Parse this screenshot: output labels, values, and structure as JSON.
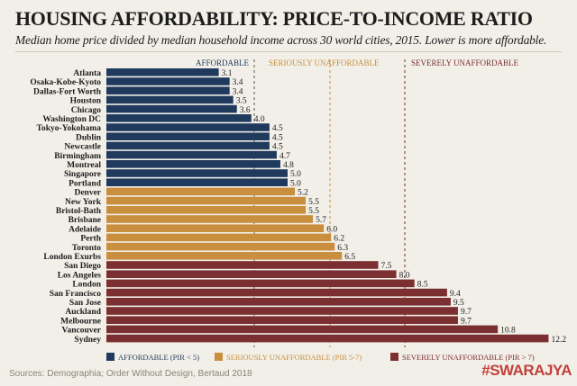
{
  "chart_data": {
    "type": "bar",
    "orientation": "horizontal",
    "title": "HOUSING AFFORDABILITY: PRICE-TO-INCOME RATIO",
    "subtitle": "Median home price divided by median household income across 30 world cities, 2015. Lower is more affordable.",
    "categories": [
      "Atlanta",
      "Osaka-Kobe-Kyoto",
      "Dallas-Fort Worth",
      "Houston",
      "Chicago",
      "Washington DC",
      "Tokyo-Yokohama",
      "Dublin",
      "Newcastle",
      "Birmingham",
      "Montreal",
      "Singapore",
      "Portland",
      "Denver",
      "New York",
      "Bristol-Bath",
      "Brisbane",
      "Adelaide",
      "Perth",
      "Toronto",
      "London Exurbs",
      "San Diego",
      "Los Angeles",
      "London",
      "San Francisco",
      "San Jose",
      "Auckland",
      "Melbourne",
      "Vancouver",
      "Sydney"
    ],
    "values": [
      3.1,
      3.4,
      3.4,
      3.5,
      3.6,
      4.0,
      4.5,
      4.5,
      4.5,
      4.7,
      4.8,
      5.0,
      5.0,
      5.2,
      5.5,
      5.5,
      5.7,
      6.0,
      6.2,
      6.3,
      6.5,
      7.5,
      8.0,
      8.5,
      9.4,
      9.5,
      9.7,
      9.7,
      10.8,
      12.2
    ],
    "groups": [
      "affordable",
      "affordable",
      "affordable",
      "affordable",
      "affordable",
      "affordable",
      "affordable",
      "affordable",
      "affordable",
      "affordable",
      "affordable",
      "affordable",
      "affordable",
      "serious",
      "serious",
      "serious",
      "serious",
      "serious",
      "serious",
      "serious",
      "serious",
      "severe",
      "severe",
      "severe",
      "severe",
      "severe",
      "severe",
      "severe",
      "severe",
      "severe"
    ],
    "zone_labels": [
      "AFFORDABLE",
      "SERIOUSLY UNAFFORDABLE",
      "SEVERELY UNAFFORDABLE"
    ],
    "legend": [
      {
        "key": "affordable",
        "label": "AFFORDABLE (PIR < 5)",
        "color": "#1f3a5c"
      },
      {
        "key": "serious",
        "label": "SERIOUSLY UNAFFORDABLE (PIR 5-7)",
        "color": "#c98f3e"
      },
      {
        "key": "severe",
        "label": "SEVERELY UNAFFORDABLE (PIR > 7)",
        "color": "#7b2f31"
      }
    ],
    "legend_position": "bottom",
    "grid": false
  },
  "footer": {
    "sources": "Sources: Demographia; Order Without Design, Bertaud 2018",
    "brand": "#SWARAJYA"
  }
}
